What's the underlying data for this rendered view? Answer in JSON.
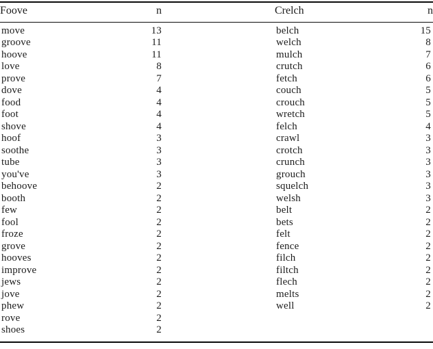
{
  "table": {
    "col1_header": "Foove",
    "col1_n_header": "n",
    "col2_header": "Crelch",
    "col2_n_header": "n",
    "rows": [
      {
        "foove": "move",
        "n1": "13",
        "crelch": "belch",
        "n2": "15"
      },
      {
        "foove": "groove",
        "n1": "11",
        "crelch": "welch",
        "n2": "8"
      },
      {
        "foove": "hoove",
        "n1": "11",
        "crelch": "mulch",
        "n2": "7"
      },
      {
        "foove": "love",
        "n1": "8",
        "crelch": "crutch",
        "n2": "6"
      },
      {
        "foove": "prove",
        "n1": "7",
        "crelch": "fetch",
        "n2": "6"
      },
      {
        "foove": "dove",
        "n1": "4",
        "crelch": "couch",
        "n2": "5"
      },
      {
        "foove": "food",
        "n1": "4",
        "crelch": "crouch",
        "n2": "5"
      },
      {
        "foove": "foot",
        "n1": "4",
        "crelch": "wretch",
        "n2": "5"
      },
      {
        "foove": "shove",
        "n1": "4",
        "crelch": "felch",
        "n2": "4"
      },
      {
        "foove": "hoof",
        "n1": "3",
        "crelch": "crawl",
        "n2": "3"
      },
      {
        "foove": "soothe",
        "n1": "3",
        "crelch": "crotch",
        "n2": "3"
      },
      {
        "foove": "tube",
        "n1": "3",
        "crelch": "crunch",
        "n2": "3"
      },
      {
        "foove": "you've",
        "n1": "3",
        "crelch": "grouch",
        "n2": "3"
      },
      {
        "foove": "behoove",
        "n1": "2",
        "crelch": "squelch",
        "n2": "3"
      },
      {
        "foove": "booth",
        "n1": "2",
        "crelch": "welsh",
        "n2": "3"
      },
      {
        "foove": "few",
        "n1": "2",
        "crelch": "belt",
        "n2": "2"
      },
      {
        "foove": "fool",
        "n1": "2",
        "crelch": "bets",
        "n2": "2"
      },
      {
        "foove": "froze",
        "n1": "2",
        "crelch": "felt",
        "n2": "2"
      },
      {
        "foove": "grove",
        "n1": "2",
        "crelch": "fence",
        "n2": "2"
      },
      {
        "foove": "hooves",
        "n1": "2",
        "crelch": "filch",
        "n2": "2"
      },
      {
        "foove": "improve",
        "n1": "2",
        "crelch": "filtch",
        "n2": "2"
      },
      {
        "foove": "jews",
        "n1": "2",
        "crelch": "flech",
        "n2": "2"
      },
      {
        "foove": "jove",
        "n1": "2",
        "crelch": "melts",
        "n2": "2"
      },
      {
        "foove": "phew",
        "n1": "2",
        "crelch": "well",
        "n2": "2"
      },
      {
        "foove": "rove",
        "n1": "2",
        "crelch": "",
        "n2": ""
      },
      {
        "foove": "shoes",
        "n1": "2",
        "crelch": "",
        "n2": ""
      }
    ]
  }
}
